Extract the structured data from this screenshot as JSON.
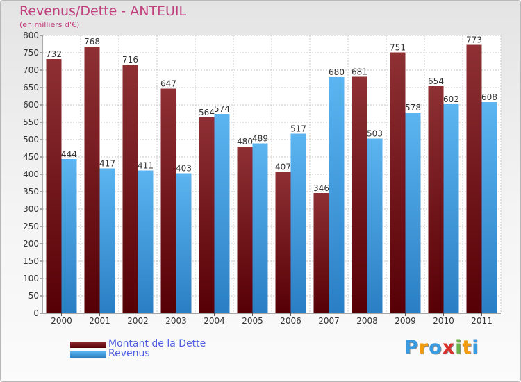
{
  "header": {
    "title": "Revenus/Dette - ANTEUIL",
    "subtitle": "(en milliers d'€)"
  },
  "colors": {
    "dette": "#7b1d1f",
    "revenus": "#3a9be0",
    "title": "#c0407e",
    "legend_text": "#4f5fe0"
  },
  "logo": {
    "text": "Proxiti",
    "letters": [
      "P",
      "r",
      "o",
      "x",
      "i",
      "t",
      "i"
    ],
    "letter_colors": [
      "#3a9be0",
      "#f39c12",
      "#3a9be0",
      "#d9302a",
      "#6ab04c",
      "#f39c12",
      "#3a9be0"
    ]
  },
  "chart_data": {
    "type": "bar",
    "title": "Revenus/Dette - ANTEUIL",
    "subtitle": "(en milliers d'€)",
    "xlabel": "",
    "ylabel": "",
    "categories": [
      "2000",
      "2001",
      "2002",
      "2003",
      "2004",
      "2005",
      "2006",
      "2007",
      "2008",
      "2009",
      "2010",
      "2011"
    ],
    "series": [
      {
        "name": "Montant de la Dette",
        "color": "#7b1d1f",
        "values": [
          732,
          768,
          716,
          647,
          564,
          480,
          407,
          346,
          681,
          751,
          654,
          773
        ]
      },
      {
        "name": "Revenus",
        "color": "#3a9be0",
        "values": [
          444,
          417,
          411,
          403,
          574,
          489,
          517,
          680,
          503,
          578,
          602,
          608
        ]
      }
    ],
    "ylim": [
      0,
      800
    ],
    "yticks": [
      0,
      50,
      100,
      150,
      200,
      250,
      300,
      350,
      400,
      450,
      500,
      550,
      600,
      650,
      700,
      750,
      800
    ],
    "grid": true,
    "legend_position": "bottom-left"
  }
}
